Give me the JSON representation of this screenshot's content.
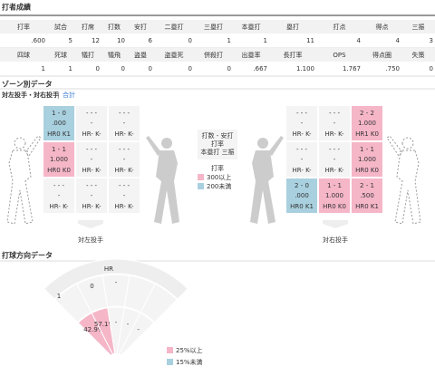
{
  "header": {
    "title": "打者成績"
  },
  "stats": {
    "rows": [
      {
        "headers": [
          "打率",
          "試合",
          "打席",
          "打数",
          "安打",
          "二塁打",
          "三塁打",
          "本塁打",
          "塁打",
          "打点",
          "得点",
          "三振"
        ],
        "values": [
          ".600",
          "5",
          "12",
          "10",
          "6",
          "0",
          "1",
          "1",
          "11",
          "4",
          "4",
          "3"
        ]
      },
      {
        "headers": [
          "四球",
          "死球",
          "犠打",
          "犠飛",
          "盗塁",
          "盗塁死",
          "併殺打",
          "出塁率",
          "長打率",
          "OPS",
          "得点圏",
          "失策"
        ],
        "values": [
          "1",
          "1",
          "0",
          "0",
          "0",
          "0",
          "0",
          ".667",
          "1.100",
          "1.767",
          ".750",
          "0"
        ]
      }
    ]
  },
  "zone": {
    "title": "ゾーン別データ",
    "tabs": [
      "対左投手・対右投手",
      "合計"
    ],
    "left": {
      "label": "対左投手",
      "cells": [
        {
          "count": "1 - 0",
          "avg": ".000",
          "hrk": "HR0 K1",
          "color": "#a9d0df"
        },
        {
          "count": "- - -",
          "avg": "-",
          "hrk": "HR- K-"
        },
        {
          "count": "- - -",
          "avg": "-",
          "hrk": "HR- K-"
        },
        {
          "count": "1 - 1",
          "avg": "1.000",
          "hrk": "HR0 K0",
          "color": "#f5b6c8"
        },
        {
          "count": "- - -",
          "avg": "-",
          "hrk": "HR- K-"
        },
        {
          "count": "- - -",
          "avg": "-",
          "hrk": "HR- K-"
        },
        {
          "count": "- - -",
          "avg": "-",
          "hrk": "HR- K-"
        },
        {
          "count": "- - -",
          "avg": "-",
          "hrk": "HR- K-"
        },
        {
          "count": "- - -",
          "avg": "-",
          "hrk": "HR- K-"
        }
      ]
    },
    "right": {
      "label": "対右投手",
      "cells": [
        {
          "count": "- - -",
          "avg": "-",
          "hrk": "HR- K-"
        },
        {
          "count": "- - -",
          "avg": "-",
          "hrk": "HR- K-"
        },
        {
          "count": "2 - 2",
          "avg": "1.000",
          "hrk": "HR1 K0",
          "color": "#f5b6c8"
        },
        {
          "count": "- - -",
          "avg": "-",
          "hrk": "HR- K-"
        },
        {
          "count": "- - -",
          "avg": "-",
          "hrk": "HR- K-"
        },
        {
          "count": "1 - 1",
          "avg": "1.000",
          "hrk": "HR0 K0",
          "color": "#f5b6c8"
        },
        {
          "count": "2 - 0",
          "avg": ".000",
          "hrk": "HR0 K1",
          "color": "#a9d0df"
        },
        {
          "count": "1 - 1",
          "avg": "1.000",
          "hrk": "HR0 K0",
          "color": "#f5b6c8"
        },
        {
          "count": "2 - 1",
          "avg": ".500",
          "hrk": "HR0 K1",
          "color": "#f5b6c8"
        }
      ]
    },
    "key": [
      "打数 - 安打",
      "打率",
      "本塁打 三振"
    ],
    "legend": {
      "title": "打率",
      "items": [
        {
          "label": "300以上",
          "color": "#f5b6c8"
        },
        {
          "label": "200未満",
          "color": "#a9d0df"
        }
      ]
    }
  },
  "direction": {
    "title": "打球方向データ",
    "hr_label": "HR",
    "left_count": "1",
    "outfield": [
      "0",
      "-"
    ],
    "infield": [
      {
        "text": "42.9%",
        "color": "#f5b6c8"
      },
      {
        "text": "57.1%",
        "color": "#f5b6c8"
      },
      {
        "text": "-"
      },
      {
        "text": "-"
      },
      {
        "text": "-"
      }
    ],
    "legend": [
      {
        "label": "25%以上",
        "color": "#f5b6c8"
      },
      {
        "label": "15%未満",
        "color": "#a9d0df"
      }
    ]
  }
}
